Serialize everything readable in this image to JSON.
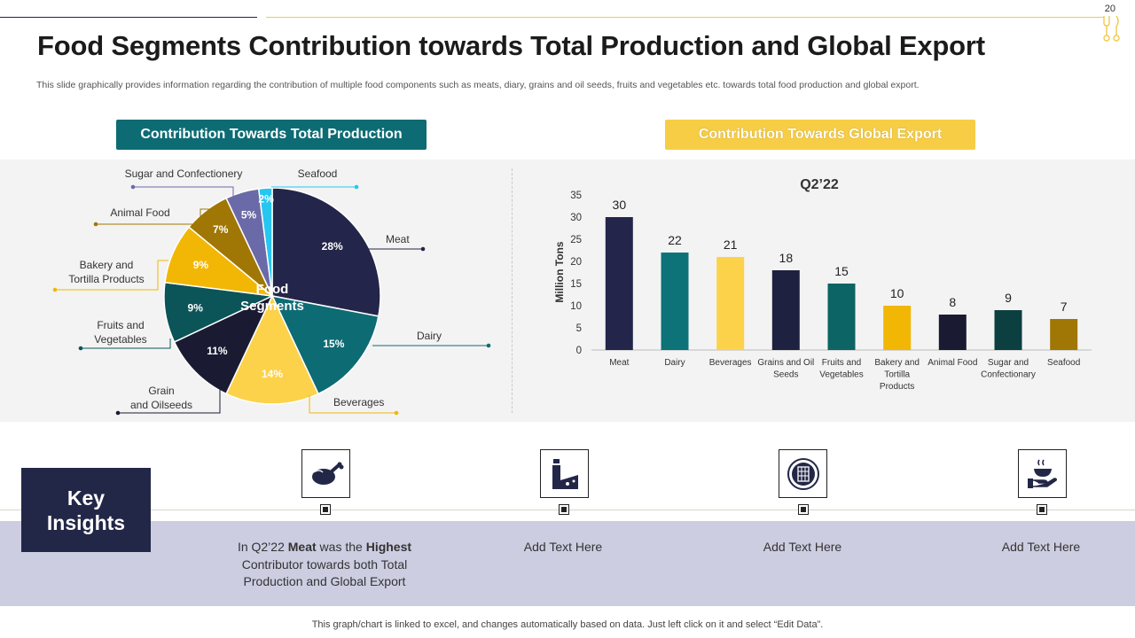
{
  "slide_number": "20",
  "title": "Food Segments Contribution towards Total Production and Global Export",
  "subtitle": "This slide graphically provides information regarding the contribution of multiple food components such as meats, diary, grains and oil seeds, fruits and vegetables etc.  towards total food production and global export.",
  "headers": {
    "left": "Contribution Towards Total Production",
    "right": "Contribution Towards Global Export"
  },
  "chart_data": [
    {
      "type": "pie",
      "center_label": [
        "Food",
        "Segments"
      ],
      "slices": [
        {
          "label": "Meat",
          "value": 28,
          "display": "28%",
          "color": "#24254a",
          "label_lines": [
            "Meat"
          ]
        },
        {
          "label": "Dairy",
          "value": 15,
          "display": "15%",
          "color": "#0d6b74",
          "label_lines": [
            "Dairy"
          ]
        },
        {
          "label": "Beverages",
          "value": 14,
          "display": "14%",
          "color": "#fcd24a",
          "label_lines": [
            "Beverages"
          ]
        },
        {
          "label": "Grain and Oilseeds",
          "value": 11,
          "display": "11%",
          "color": "#1a1b33",
          "label_lines": [
            "Grain",
            "and Oilseeds"
          ]
        },
        {
          "label": "Fruits and Vegetables",
          "value": 9,
          "display": "9%",
          "color": "#0b5458",
          "label_lines": [
            "Fruits and",
            "Vegetables"
          ]
        },
        {
          "label": "Bakery and Tortilla Products",
          "value": 9,
          "display": "9%",
          "color": "#f2b705",
          "label_lines": [
            "Bakery and",
            "Tortilla Products"
          ]
        },
        {
          "label": "Animal Food",
          "value": 7,
          "display": "7%",
          "color": "#a07605",
          "label_lines": [
            "Animal Food"
          ]
        },
        {
          "label": "Sugar and Confectionery",
          "value": 5,
          "display": "5%",
          "color": "#6b6aa8",
          "label_lines": [
            "Sugar and Confectionery"
          ]
        },
        {
          "label": "Seafood",
          "value": 2,
          "display": "2%",
          "color": "#26c6f0",
          "label_lines": [
            "Seafood"
          ]
        }
      ]
    },
    {
      "type": "bar",
      "title": "Q2’22",
      "ylabel": "Million Tons",
      "ylim": [
        0,
        35
      ],
      "yticks": [
        0,
        5,
        10,
        15,
        20,
        25,
        30,
        35
      ],
      "categories": [
        [
          "Meat"
        ],
        [
          "Dairy"
        ],
        [
          "Beverages"
        ],
        [
          "Grains and Oil",
          "Seeds"
        ],
        [
          "Fruits and",
          "Vegetables"
        ],
        [
          "Bakery and",
          "Tortilla",
          "Products"
        ],
        [
          "Animal Food"
        ],
        [
          "Sugar and",
          "Confectionary"
        ],
        [
          "Seafood"
        ]
      ],
      "values": [
        30,
        22,
        21,
        18,
        15,
        10,
        8,
        9,
        7
      ],
      "colors": [
        "#24254a",
        "#0d7379",
        "#fcd24a",
        "#1e2140",
        "#0d6464",
        "#f2b705",
        "#1a1b33",
        "#0b3f40",
        "#a07605"
      ]
    }
  ],
  "key_insights": {
    "title_lines": [
      "Key",
      "Insights"
    ],
    "items": [
      {
        "icon": "roast-chicken-icon",
        "lines": [
          [
            {
              "t": "In Q2’22 ",
              "b": false
            },
            {
              "t": "Meat",
              "b": true
            },
            {
              "t": " was the ",
              "b": false
            },
            {
              "t": "Highest",
              "b": true
            }
          ],
          [
            {
              "t": "Contributor towards both Total",
              "b": false
            }
          ],
          [
            {
              "t": "Production and Global Export",
              "b": false
            }
          ]
        ]
      },
      {
        "icon": "milk-cheese-icon",
        "lines": [
          [
            {
              "t": "Add Text Here",
              "b": false
            }
          ]
        ]
      },
      {
        "icon": "food-tin-icon",
        "lines": [
          [
            {
              "t": "Add Text Here",
              "b": false
            }
          ]
        ]
      },
      {
        "icon": "hand-serving-icon",
        "lines": [
          [
            {
              "t": "Add Text Here",
              "b": false
            }
          ]
        ]
      }
    ]
  },
  "footer": "This graph/chart is linked to excel, and changes automatically based on data. Just left click on it and select “Edit Data”."
}
